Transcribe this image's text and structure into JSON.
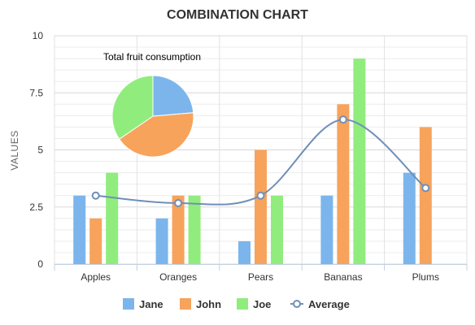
{
  "chart_data": {
    "type": "bar",
    "title": "COMBINATION CHART",
    "xlabel": "",
    "ylabel": "VALUES",
    "categories": [
      "Apples",
      "Oranges",
      "Pears",
      "Bananas",
      "Plums"
    ],
    "ylim": [
      0,
      10
    ],
    "yticks": [
      "0",
      "2.5",
      "5",
      "7.5",
      "10"
    ],
    "ytick_values": [
      0,
      2.5,
      5,
      7.5,
      10
    ],
    "grid": true,
    "legend_position": "bottom",
    "series": [
      {
        "name": "Jane",
        "type": "bar",
        "color": "#7cb5ec",
        "values": [
          3,
          2,
          1,
          3,
          4
        ]
      },
      {
        "name": "John",
        "type": "bar",
        "color": "#f7a35c",
        "values": [
          2,
          3,
          5,
          7,
          6
        ]
      },
      {
        "name": "Joe",
        "type": "bar",
        "color": "#90ed7d",
        "values": [
          4,
          3,
          3,
          9,
          0
        ]
      },
      {
        "name": "Average",
        "type": "spline",
        "color": "#6f8fb8",
        "values": [
          3,
          2.67,
          3,
          6.33,
          3.33
        ]
      }
    ],
    "pie": {
      "label": "Total fruit consumption",
      "slices": [
        {
          "name": "Jane",
          "value": 13,
          "color": "#7cb5ec"
        },
        {
          "name": "John",
          "value": 23,
          "color": "#f7a35c"
        },
        {
          "name": "Joe",
          "value": 19,
          "color": "#90ed7d"
        }
      ]
    }
  }
}
